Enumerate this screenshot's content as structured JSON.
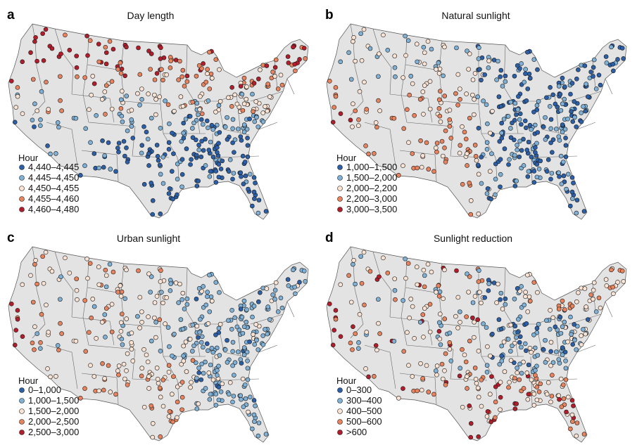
{
  "chart_data": [
    {
      "type": "map",
      "panel": "a",
      "title": "Day length",
      "legend_title": "Hour",
      "bins": [
        {
          "label": "4,440–4,445",
          "color": "#2b5fa8"
        },
        {
          "label": "4,445–4,450",
          "color": "#7fb0d6"
        },
        {
          "label": "4,450–4,455",
          "color": "#fbe3d4"
        },
        {
          "label": "4,455–4,460",
          "color": "#e8835e"
        },
        {
          "label": "4,460–4,480",
          "color": "#b21d2b"
        }
      ]
    },
    {
      "type": "map",
      "panel": "b",
      "title": "Natural sunlight",
      "legend_title": "Hour",
      "bins": [
        {
          "label": "1,000–1,500",
          "color": "#2b5fa8"
        },
        {
          "label": "1,500–2,000",
          "color": "#7fb0d6"
        },
        {
          "label": "2,000–2,200",
          "color": "#fbe3d4"
        },
        {
          "label": "2,200–3,000",
          "color": "#e8835e"
        },
        {
          "label": "3,000–3,500",
          "color": "#b21d2b"
        }
      ]
    },
    {
      "type": "map",
      "panel": "c",
      "title": "Urban sunlight",
      "legend_title": "Hour",
      "bins": [
        {
          "label": "0–1,000",
          "color": "#2b5fa8"
        },
        {
          "label": "1,000–1,500",
          "color": "#7fb0d6"
        },
        {
          "label": "1,500–2,000",
          "color": "#fbe3d4"
        },
        {
          "label": "2,000–2,500",
          "color": "#e8835e"
        },
        {
          "label": "2,500–3,000",
          "color": "#b21d2b"
        }
      ]
    },
    {
      "type": "map",
      "panel": "d",
      "title": "Sunlight reduction",
      "legend_title": "Hour",
      "bins": [
        {
          "label": "0–300",
          "color": "#2b5fa8"
        },
        {
          "label": "300–400",
          "color": "#7fb0d6"
        },
        {
          "label": "400–500",
          "color": "#fbe3d4"
        },
        {
          "label": "500–600",
          "color": "#e8835e"
        },
        {
          "label": ">600",
          "color": "#b21d2b"
        }
      ]
    }
  ]
}
